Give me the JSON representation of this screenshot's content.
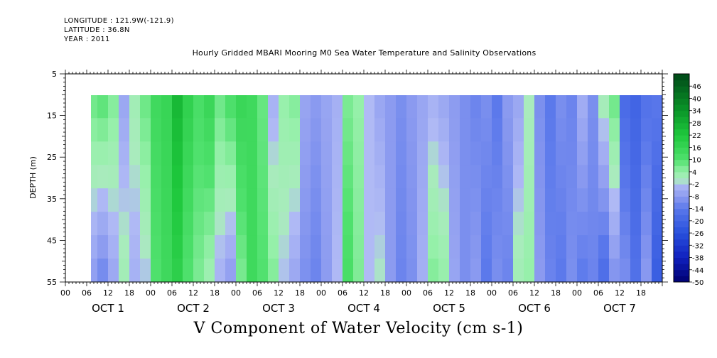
{
  "header": {
    "longitude": "LONGITUDE : 121.9W(-121.9)",
    "latitude": "LATITUDE : 36.8N",
    "year": "YEAR : 2011",
    "title": "Hourly Gridded MBARI Mooring M0 Sea Water Temperature and Salinity Observations"
  },
  "caption": "V Component of Water Velocity (cm s-1)",
  "chart_data": {
    "type": "heatmap",
    "title": "Hourly Gridded MBARI Mooring M0 Sea Water Temperature and Salinity Observations",
    "xlabel": "",
    "ylabel": "DEPTH (m)",
    "colorbar_label": "V Component of Water Velocity (cm s-1)",
    "x_hour_ticks": [
      "00",
      "06",
      "12",
      "18",
      "00",
      "06",
      "12",
      "18",
      "00",
      "06",
      "12",
      "18",
      "00",
      "06",
      "12",
      "18",
      "00",
      "06",
      "12",
      "18",
      "00",
      "06",
      "12",
      "18",
      "00",
      "06",
      "12",
      "18"
    ],
    "day_labels": [
      "OCT  1",
      "OCT  2",
      "OCT  3",
      "OCT  4",
      "OCT  5",
      "OCT  6",
      "OCT  7"
    ],
    "x_range_hours": [
      0,
      168
    ],
    "data_x_range_hours": [
      4,
      168
    ],
    "y_ticks": [
      "5",
      "15",
      "25",
      "35",
      "45",
      "55"
    ],
    "ylim": [
      55,
      5
    ],
    "data_depth_range": [
      10,
      55
    ],
    "colorbar_ticks": [
      "46",
      "40",
      "34",
      "28",
      "22",
      "16",
      "10",
      "4",
      "-2",
      "-8",
      "-14",
      "-20",
      "-26",
      "-32",
      "-38",
      "-44",
      "-50"
    ],
    "colorbar_range": [
      -50,
      52
    ],
    "colors": {
      "strong_negative": "#000070",
      "negative": "#2a50dc",
      "weak_negative": "#a8b4f0",
      "near_zero": "#a0f0b0",
      "positive": "#30d850",
      "strong_positive": "#004818"
    },
    "columns": [
      {
        "day": 1,
        "hour": 4,
        "top": 6,
        "bottom": -4
      },
      {
        "day": 1,
        "hour": 6,
        "top": 8,
        "bottom": -8
      },
      {
        "day": 1,
        "hour": 9,
        "top": 10,
        "bottom": -12
      },
      {
        "day": 1,
        "hour": 12,
        "top": 6,
        "bottom": -6
      },
      {
        "day": 1,
        "hour": 15,
        "top": -6,
        "bottom": 2
      },
      {
        "day": 1,
        "hour": 18,
        "top": 2,
        "bottom": -4
      },
      {
        "day": 1,
        "hour": 21,
        "top": 8,
        "bottom": -2
      },
      {
        "day": 2,
        "hour": 0,
        "top": 14,
        "bottom": 10
      },
      {
        "day": 2,
        "hour": 3,
        "top": 16,
        "bottom": 14
      },
      {
        "day": 2,
        "hour": 6,
        "top": 26,
        "bottom": 18
      },
      {
        "day": 2,
        "hour": 9,
        "top": 18,
        "bottom": 10
      },
      {
        "day": 2,
        "hour": 12,
        "top": 12,
        "bottom": 6
      },
      {
        "day": 2,
        "hour": 15,
        "top": 16,
        "bottom": 2
      },
      {
        "day": 2,
        "hour": 18,
        "top": 8,
        "bottom": -4
      },
      {
        "day": 2,
        "hour": 21,
        "top": 12,
        "bottom": -8
      },
      {
        "day": 3,
        "hour": 0,
        "top": 16,
        "bottom": 6
      },
      {
        "day": 3,
        "hour": 3,
        "top": 14,
        "bottom": 14
      },
      {
        "day": 3,
        "hour": 6,
        "top": 8,
        "bottom": 10
      },
      {
        "day": 3,
        "hour": 9,
        "top": -4,
        "bottom": 6
      },
      {
        "day": 3,
        "hour": 12,
        "top": 4,
        "bottom": -2
      },
      {
        "day": 3,
        "hour": 15,
        "top": 6,
        "bottom": -6
      },
      {
        "day": 3,
        "hour": 18,
        "top": -6,
        "bottom": -10
      },
      {
        "day": 3,
        "hour": 21,
        "top": -8,
        "bottom": -12
      },
      {
        "day": 4,
        "hour": 0,
        "top": -6,
        "bottom": -8
      },
      {
        "day": 4,
        "hour": 3,
        "top": -4,
        "bottom": -2
      },
      {
        "day": 4,
        "hour": 6,
        "top": 6,
        "bottom": 12
      },
      {
        "day": 4,
        "hour": 9,
        "top": 4,
        "bottom": 6
      },
      {
        "day": 4,
        "hour": 12,
        "top": -2,
        "bottom": -2
      },
      {
        "day": 4,
        "hour": 15,
        "top": -6,
        "bottom": 0
      },
      {
        "day": 4,
        "hour": 18,
        "top": -8,
        "bottom": -8
      },
      {
        "day": 4,
        "hour": 21,
        "top": -10,
        "bottom": -12
      },
      {
        "day": 5,
        "hour": 0,
        "top": -8,
        "bottom": -10
      },
      {
        "day": 5,
        "hour": 3,
        "top": -6,
        "bottom": -4
      },
      {
        "day": 5,
        "hour": 6,
        "top": -4,
        "bottom": 6
      },
      {
        "day": 5,
        "hour": 9,
        "top": -6,
        "bottom": 4
      },
      {
        "day": 5,
        "hour": 12,
        "top": -8,
        "bottom": -6
      },
      {
        "day": 5,
        "hour": 15,
        "top": -10,
        "bottom": -10
      },
      {
        "day": 5,
        "hour": 18,
        "top": -12,
        "bottom": -8
      },
      {
        "day": 5,
        "hour": 21,
        "top": -10,
        "bottom": -14
      },
      {
        "day": 6,
        "hour": 0,
        "top": -14,
        "bottom": -10
      },
      {
        "day": 6,
        "hour": 3,
        "top": -8,
        "bottom": -12
      },
      {
        "day": 6,
        "hour": 6,
        "top": -6,
        "bottom": 2
      },
      {
        "day": 6,
        "hour": 9,
        "top": 0,
        "bottom": 4
      },
      {
        "day": 6,
        "hour": 12,
        "top": -10,
        "bottom": -8
      },
      {
        "day": 6,
        "hour": 15,
        "top": -14,
        "bottom": -12
      },
      {
        "day": 6,
        "hour": 18,
        "top": -10,
        "bottom": -14
      },
      {
        "day": 6,
        "hour": 21,
        "top": -12,
        "bottom": -10
      },
      {
        "day": 7,
        "hour": 0,
        "top": -4,
        "bottom": -14
      },
      {
        "day": 7,
        "hour": 3,
        "top": -10,
        "bottom": -12
      },
      {
        "day": 7,
        "hour": 6,
        "top": 2,
        "bottom": -18
      },
      {
        "day": 7,
        "hour": 9,
        "top": 8,
        "bottom": -10
      },
      {
        "day": 7,
        "hour": 12,
        "top": -18,
        "bottom": -10
      },
      {
        "day": 7,
        "hour": 15,
        "top": -20,
        "bottom": -16
      },
      {
        "day": 7,
        "hour": 18,
        "top": -16,
        "bottom": -8
      },
      {
        "day": 7,
        "hour": 21,
        "top": -14,
        "bottom": -22
      },
      {
        "day": 8,
        "hour": 0,
        "top": -12,
        "bottom": -18
      }
    ]
  }
}
